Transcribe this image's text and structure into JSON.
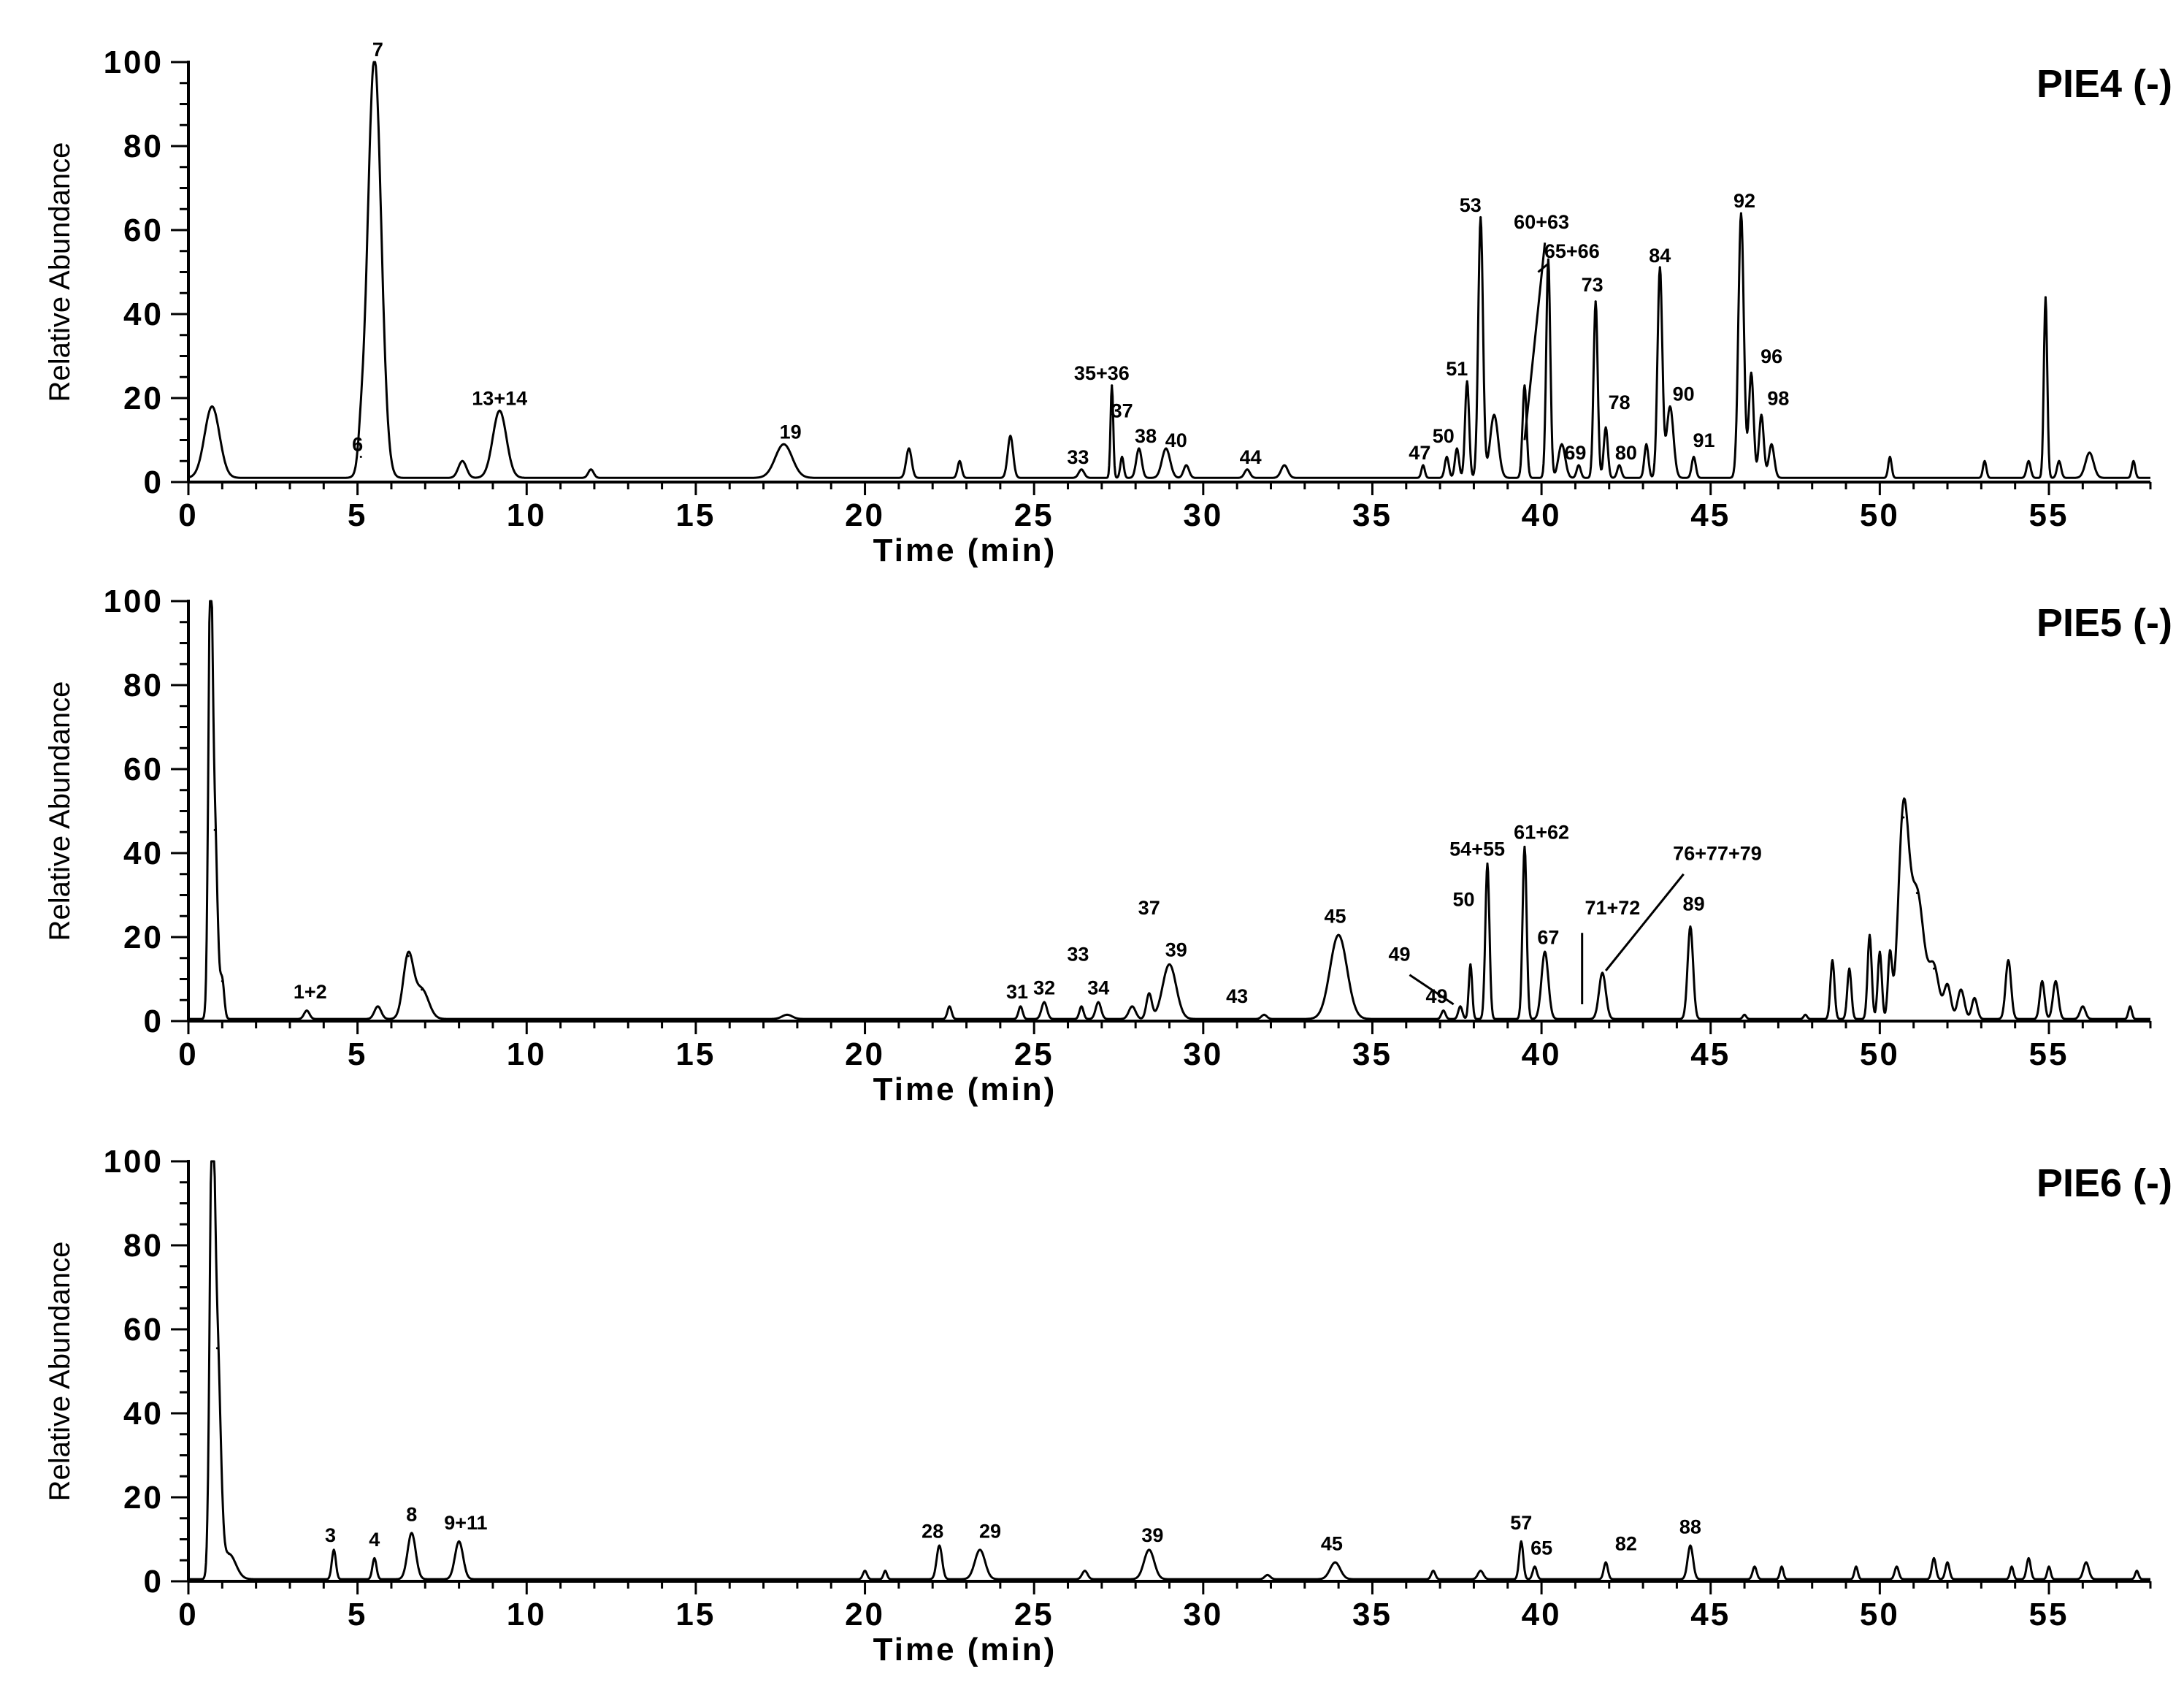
{
  "chart_data": [
    {
      "type": "line",
      "title": "PIE4 (-)",
      "xlabel": "Time (min)",
      "ylabel": "Relative Abundance",
      "xlim": [
        0,
        58
      ],
      "ylim": [
        0,
        100
      ],
      "x_ticks": [
        0,
        5,
        10,
        15,
        20,
        25,
        30,
        35,
        40,
        45,
        50,
        55
      ],
      "y_ticks": [
        0,
        20,
        40,
        60,
        80,
        100
      ],
      "baseline": 1,
      "peaks": [
        {
          "t": 0.7,
          "h": 17,
          "w": 0.22
        },
        {
          "t": 5.1,
          "h": 5,
          "w": 0.08
        },
        {
          "t": 5.5,
          "h": 100,
          "w": 0.2
        },
        {
          "t": 8.1,
          "h": 4,
          "w": 0.12
        },
        {
          "t": 9.2,
          "h": 16,
          "w": 0.2
        },
        {
          "t": 11.9,
          "h": 2,
          "w": 0.08
        },
        {
          "t": 17.6,
          "h": 8,
          "w": 0.25
        },
        {
          "t": 21.3,
          "h": 7,
          "w": 0.08
        },
        {
          "t": 22.8,
          "h": 4,
          "w": 0.06
        },
        {
          "t": 24.3,
          "h": 10,
          "w": 0.08
        },
        {
          "t": 26.4,
          "h": 2,
          "w": 0.08
        },
        {
          "t": 27.3,
          "h": 22,
          "w": 0.04
        },
        {
          "t": 27.6,
          "h": 5,
          "w": 0.05
        },
        {
          "t": 28.1,
          "h": 7,
          "w": 0.08
        },
        {
          "t": 28.9,
          "h": 7,
          "w": 0.12
        },
        {
          "t": 29.5,
          "h": 3,
          "w": 0.08
        },
        {
          "t": 31.3,
          "h": 2,
          "w": 0.08
        },
        {
          "t": 32.4,
          "h": 3,
          "w": 0.1
        },
        {
          "t": 36.5,
          "h": 3,
          "w": 0.05
        },
        {
          "t": 37.2,
          "h": 5,
          "w": 0.06
        },
        {
          "t": 37.5,
          "h": 7,
          "w": 0.06
        },
        {
          "t": 37.8,
          "h": 23,
          "w": 0.06
        },
        {
          "t": 38.2,
          "h": 62,
          "w": 0.07
        },
        {
          "t": 38.6,
          "h": 15,
          "w": 0.12
        },
        {
          "t": 39.5,
          "h": 22,
          "w": 0.06
        },
        {
          "t": 40.2,
          "h": 52,
          "w": 0.06
        },
        {
          "t": 40.6,
          "h": 8,
          "w": 0.1
        },
        {
          "t": 41.1,
          "h": 3,
          "w": 0.06
        },
        {
          "t": 41.6,
          "h": 42,
          "w": 0.06
        },
        {
          "t": 41.9,
          "h": 12,
          "w": 0.06
        },
        {
          "t": 42.3,
          "h": 3,
          "w": 0.06
        },
        {
          "t": 43.1,
          "h": 8,
          "w": 0.06
        },
        {
          "t": 43.5,
          "h": 50,
          "w": 0.07
        },
        {
          "t": 43.8,
          "h": 17,
          "w": 0.1
        },
        {
          "t": 44.5,
          "h": 5,
          "w": 0.06
        },
        {
          "t": 45.9,
          "h": 63,
          "w": 0.08
        },
        {
          "t": 46.2,
          "h": 25,
          "w": 0.07
        },
        {
          "t": 46.5,
          "h": 15,
          "w": 0.07
        },
        {
          "t": 46.8,
          "h": 8,
          "w": 0.08
        },
        {
          "t": 50.3,
          "h": 5,
          "w": 0.05
        },
        {
          "t": 53.1,
          "h": 4,
          "w": 0.05
        },
        {
          "t": 54.4,
          "h": 4,
          "w": 0.06
        },
        {
          "t": 54.9,
          "h": 43,
          "w": 0.05
        },
        {
          "t": 55.3,
          "h": 4,
          "w": 0.06
        },
        {
          "t": 56.2,
          "h": 6,
          "w": 0.12
        },
        {
          "t": 57.5,
          "h": 4,
          "w": 0.05
        }
      ],
      "labels": [
        {
          "text": "7",
          "t": 5.6,
          "y": 100
        },
        {
          "text": "6",
          "t": 5.0,
          "y": 6
        },
        {
          "text": "13+14",
          "t": 9.2,
          "y": 17
        },
        {
          "text": "19",
          "t": 17.8,
          "y": 9
        },
        {
          "text": "33",
          "t": 26.3,
          "y": 3
        },
        {
          "text": "35+36",
          "t": 27.0,
          "y": 23
        },
        {
          "text": "37",
          "t": 27.6,
          "y": 14
        },
        {
          "text": "38",
          "t": 28.3,
          "y": 8
        },
        {
          "text": "40",
          "t": 29.2,
          "y": 7
        },
        {
          "text": "44",
          "t": 31.4,
          "y": 3
        },
        {
          "text": "47",
          "t": 36.4,
          "y": 4
        },
        {
          "text": "50",
          "t": 37.1,
          "y": 8
        },
        {
          "text": "51",
          "t": 37.5,
          "y": 24
        },
        {
          "text": "53",
          "t": 37.9,
          "y": 63
        },
        {
          "text": "60+63",
          "t": 40.0,
          "y": 59
        },
        {
          "text": "65+66",
          "t": 40.9,
          "y": 52
        },
        {
          "text": "69",
          "t": 41.0,
          "y": 4
        },
        {
          "text": "73",
          "t": 41.5,
          "y": 44
        },
        {
          "text": "78",
          "t": 42.3,
          "y": 16
        },
        {
          "text": "80",
          "t": 42.5,
          "y": 4
        },
        {
          "text": "84",
          "t": 43.5,
          "y": 51
        },
        {
          "text": "90",
          "t": 44.2,
          "y": 18
        },
        {
          "text": "91",
          "t": 44.8,
          "y": 7
        },
        {
          "text": "92",
          "t": 46.0,
          "y": 64
        },
        {
          "text": "96",
          "t": 46.8,
          "y": 27
        },
        {
          "text": "98",
          "t": 47.0,
          "y": 17
        }
      ],
      "leaders": [
        {
          "t1": 40.1,
          "y1": 57,
          "t2": 39.5,
          "y2": 10
        },
        {
          "t1": 39.9,
          "y1": 50,
          "t2": 40.2,
          "y2": 52
        }
      ]
    },
    {
      "type": "line",
      "title": "PIE5 (-)",
      "xlabel": "Time (min)",
      "ylabel": "Relative Abundance",
      "xlim": [
        0,
        58
      ],
      "ylim": [
        0,
        100
      ],
      "x_ticks": [
        0,
        5,
        10,
        15,
        20,
        25,
        30,
        35,
        40,
        45,
        50,
        55
      ],
      "y_ticks": [
        0,
        20,
        40,
        60,
        80,
        100
      ],
      "baseline": 0.5,
      "peaks": [
        {
          "t": 0.65,
          "h": 100,
          "w": 0.06
        },
        {
          "t": 0.78,
          "h": 45,
          "w": 0.08
        },
        {
          "t": 1.0,
          "h": 9,
          "w": 0.06
        },
        {
          "t": 3.5,
          "h": 2,
          "w": 0.08
        },
        {
          "t": 5.6,
          "h": 3,
          "w": 0.1
        },
        {
          "t": 6.5,
          "h": 15,
          "w": 0.15
        },
        {
          "t": 6.9,
          "h": 7,
          "w": 0.2
        },
        {
          "t": 17.7,
          "h": 1,
          "w": 0.15
        },
        {
          "t": 22.5,
          "h": 3,
          "w": 0.06
        },
        {
          "t": 24.6,
          "h": 3,
          "w": 0.06
        },
        {
          "t": 25.3,
          "h": 4,
          "w": 0.08
        },
        {
          "t": 26.4,
          "h": 3,
          "w": 0.06
        },
        {
          "t": 26.9,
          "h": 4,
          "w": 0.08
        },
        {
          "t": 27.9,
          "h": 3,
          "w": 0.1
        },
        {
          "t": 28.4,
          "h": 6,
          "w": 0.08
        },
        {
          "t": 29.0,
          "h": 13,
          "w": 0.2
        },
        {
          "t": 31.8,
          "h": 1,
          "w": 0.08
        },
        {
          "t": 34.0,
          "h": 20,
          "w": 0.25
        },
        {
          "t": 37.1,
          "h": 2,
          "w": 0.06
        },
        {
          "t": 37.6,
          "h": 3,
          "w": 0.06
        },
        {
          "t": 37.9,
          "h": 13,
          "w": 0.05
        },
        {
          "t": 38.4,
          "h": 37,
          "w": 0.06
        },
        {
          "t": 39.5,
          "h": 41,
          "w": 0.06
        },
        {
          "t": 40.1,
          "h": 16,
          "w": 0.1
        },
        {
          "t": 41.8,
          "h": 11,
          "w": 0.1
        },
        {
          "t": 44.4,
          "h": 22,
          "w": 0.08
        },
        {
          "t": 46.0,
          "h": 1,
          "w": 0.05
        },
        {
          "t": 47.8,
          "h": 1,
          "w": 0.05
        },
        {
          "t": 48.6,
          "h": 14,
          "w": 0.06
        },
        {
          "t": 49.1,
          "h": 12,
          "w": 0.06
        },
        {
          "t": 49.7,
          "h": 20,
          "w": 0.06
        },
        {
          "t": 50.0,
          "h": 16,
          "w": 0.06
        },
        {
          "t": 50.3,
          "h": 15,
          "w": 0.06
        },
        {
          "t": 50.7,
          "h": 48,
          "w": 0.15
        },
        {
          "t": 51.1,
          "h": 30,
          "w": 0.2
        },
        {
          "t": 51.6,
          "h": 12,
          "w": 0.15
        },
        {
          "t": 52.0,
          "h": 8,
          "w": 0.1
        },
        {
          "t": 52.4,
          "h": 7,
          "w": 0.1
        },
        {
          "t": 52.8,
          "h": 5,
          "w": 0.08
        },
        {
          "t": 53.8,
          "h": 14,
          "w": 0.08
        },
        {
          "t": 54.8,
          "h": 9,
          "w": 0.07
        },
        {
          "t": 55.2,
          "h": 9,
          "w": 0.08
        },
        {
          "t": 56.0,
          "h": 3,
          "w": 0.08
        },
        {
          "t": 57.4,
          "h": 3,
          "w": 0.05
        }
      ],
      "labels": [
        {
          "text": "1+2",
          "t": 3.6,
          "y": 4
        },
        {
          "text": "31",
          "t": 24.5,
          "y": 4
        },
        {
          "text": "32",
          "t": 25.3,
          "y": 5
        },
        {
          "text": "33",
          "t": 26.3,
          "y": 13
        },
        {
          "text": "34",
          "t": 26.9,
          "y": 5
        },
        {
          "text": "37",
          "t": 28.4,
          "y": 24
        },
        {
          "text": "39",
          "t": 29.2,
          "y": 14
        },
        {
          "text": "43",
          "t": 31.0,
          "y": 3
        },
        {
          "text": "45",
          "t": 33.9,
          "y": 22
        },
        {
          "text": "49",
          "t": 35.8,
          "y": 13
        },
        {
          "text": "49",
          "t": 36.9,
          "y": 3
        },
        {
          "text": "50",
          "t": 37.7,
          "y": 26
        },
        {
          "text": "54+55",
          "t": 38.1,
          "y": 38
        },
        {
          "text": "61+62",
          "t": 40.0,
          "y": 42
        },
        {
          "text": "67",
          "t": 40.2,
          "y": 17
        },
        {
          "text": "71+72",
          "t": 42.1,
          "y": 24
        },
        {
          "text": "76+77+79",
          "t": 45.2,
          "y": 37
        },
        {
          "text": "89",
          "t": 44.5,
          "y": 25
        }
      ],
      "leaders": [
        {
          "t1": 36.1,
          "y1": 11,
          "t2": 37.4,
          "y2": 4
        },
        {
          "t1": 41.2,
          "y1": 21,
          "t2": 41.2,
          "y2": 4
        },
        {
          "t1": 44.2,
          "y1": 35,
          "t2": 41.9,
          "y2": 12
        }
      ]
    },
    {
      "type": "line",
      "title": "PIE6 (-)",
      "xlabel": "Time (min)",
      "ylabel": "Relative Abundance",
      "xlim": [
        0,
        58
      ],
      "ylim": [
        0,
        100
      ],
      "x_ticks": [
        0,
        5,
        10,
        15,
        20,
        25,
        30,
        35,
        40,
        45,
        50,
        55
      ],
      "y_ticks": [
        0,
        20,
        40,
        60,
        80,
        100
      ],
      "baseline": 0.5,
      "peaks": [
        {
          "t": 0.7,
          "h": 100,
          "w": 0.07
        },
        {
          "t": 0.85,
          "h": 55,
          "w": 0.1
        },
        {
          "t": 1.2,
          "h": 6,
          "w": 0.2
        },
        {
          "t": 4.3,
          "h": 7,
          "w": 0.06
        },
        {
          "t": 5.5,
          "h": 5,
          "w": 0.06
        },
        {
          "t": 6.6,
          "h": 11,
          "w": 0.12
        },
        {
          "t": 8.0,
          "h": 9,
          "w": 0.12
        },
        {
          "t": 20.0,
          "h": 2,
          "w": 0.06
        },
        {
          "t": 20.6,
          "h": 2,
          "w": 0.05
        },
        {
          "t": 22.2,
          "h": 8,
          "w": 0.08
        },
        {
          "t": 23.4,
          "h": 7,
          "w": 0.15
        },
        {
          "t": 26.5,
          "h": 2,
          "w": 0.08
        },
        {
          "t": 28.4,
          "h": 7,
          "w": 0.15
        },
        {
          "t": 31.9,
          "h": 1,
          "w": 0.08
        },
        {
          "t": 33.9,
          "h": 4,
          "w": 0.15
        },
        {
          "t": 36.8,
          "h": 2,
          "w": 0.06
        },
        {
          "t": 38.2,
          "h": 2,
          "w": 0.08
        },
        {
          "t": 39.4,
          "h": 9,
          "w": 0.06
        },
        {
          "t": 39.8,
          "h": 3,
          "w": 0.06
        },
        {
          "t": 41.9,
          "h": 4,
          "w": 0.06
        },
        {
          "t": 44.4,
          "h": 8,
          "w": 0.08
        },
        {
          "t": 46.3,
          "h": 3,
          "w": 0.06
        },
        {
          "t": 47.1,
          "h": 3,
          "w": 0.05
        },
        {
          "t": 49.3,
          "h": 3,
          "w": 0.05
        },
        {
          "t": 50.5,
          "h": 3,
          "w": 0.06
        },
        {
          "t": 51.6,
          "h": 5,
          "w": 0.06
        },
        {
          "t": 52.0,
          "h": 4,
          "w": 0.06
        },
        {
          "t": 53.9,
          "h": 3,
          "w": 0.05
        },
        {
          "t": 54.4,
          "h": 5,
          "w": 0.06
        },
        {
          "t": 55.0,
          "h": 3,
          "w": 0.05
        },
        {
          "t": 56.1,
          "h": 4,
          "w": 0.08
        },
        {
          "t": 57.6,
          "h": 2,
          "w": 0.05
        }
      ],
      "labels": [
        {
          "text": "3",
          "t": 4.2,
          "y": 8
        },
        {
          "text": "4",
          "t": 5.5,
          "y": 7
        },
        {
          "text": "8",
          "t": 6.6,
          "y": 13
        },
        {
          "text": "9+11",
          "t": 8.2,
          "y": 11
        },
        {
          "text": "28",
          "t": 22.0,
          "y": 9
        },
        {
          "text": "29",
          "t": 23.7,
          "y": 9
        },
        {
          "text": "39",
          "t": 28.5,
          "y": 8
        },
        {
          "text": "45",
          "t": 33.8,
          "y": 6
        },
        {
          "text": "57",
          "t": 39.4,
          "y": 11
        },
        {
          "text": "65",
          "t": 40.0,
          "y": 5
        },
        {
          "text": "82",
          "t": 42.5,
          "y": 6
        },
        {
          "text": "88",
          "t": 44.4,
          "y": 10
        }
      ],
      "leaders": []
    }
  ]
}
